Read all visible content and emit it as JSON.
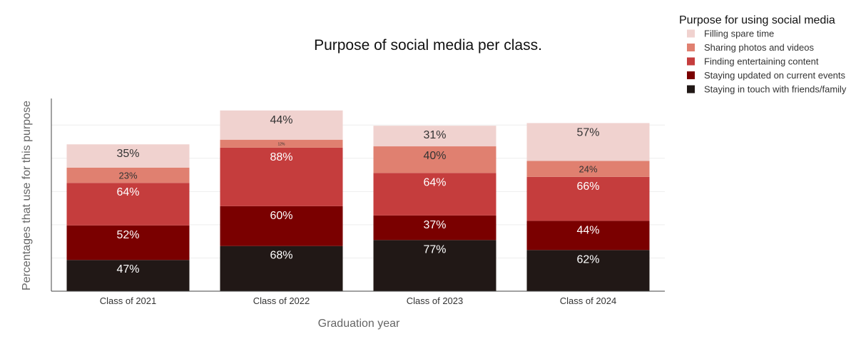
{
  "colors": {
    "background": "#ffffff",
    "axis": "#444444",
    "grid": "#eeeeee",
    "title": "#111111",
    "tick": "#333333",
    "axis_label": "#666666",
    "label_dark": "#333333",
    "label_light": "#ffffff"
  },
  "chart_data": {
    "type": "bar",
    "stacked": true,
    "title": "Purpose of social media per class.",
    "xlabel": "Graduation year",
    "ylabel": "Percentages that use for this purpose",
    "categories": [
      "Class of 2021",
      "Class of 2022",
      "Class of 2023",
      "Class of 2024"
    ],
    "ylim": [
      0,
      290
    ],
    "grid": true,
    "legend": {
      "title": "Purpose for using social media",
      "position": "top-right",
      "order": [
        4,
        3,
        2,
        1,
        0
      ]
    },
    "series": [
      {
        "name": "Staying in touch with friends/family",
        "color": "#211816",
        "label_color": "#ffffff",
        "values": [
          47,
          68,
          77,
          62
        ],
        "labels": [
          "47%",
          "68%",
          "77%",
          "62%"
        ]
      },
      {
        "name": "Staying updated on current events",
        "color": "#7a0000",
        "label_color": "#ffffff",
        "values": [
          52,
          60,
          37,
          44
        ],
        "labels": [
          "52%",
          "60%",
          "37%",
          "44%"
        ]
      },
      {
        "name": "Finding entertaining content",
        "color": "#c53d3d",
        "label_color": "#ffffff",
        "values": [
          64,
          88,
          64,
          66
        ],
        "labels": [
          "64%",
          "88%",
          "64%",
          "66%"
        ]
      },
      {
        "name": "Sharing photos and videos",
        "color": "#e08070",
        "label_color": "#333333",
        "values": [
          23,
          12,
          40,
          24
        ],
        "labels": [
          "23%",
          "12%",
          "40%",
          "24%"
        ]
      },
      {
        "name": "Filling spare time",
        "color": "#f0d2cf",
        "label_color": "#333333",
        "values": [
          35,
          44,
          31,
          57
        ],
        "labels": [
          "35%",
          "44%",
          "31%",
          "57%"
        ]
      }
    ]
  }
}
